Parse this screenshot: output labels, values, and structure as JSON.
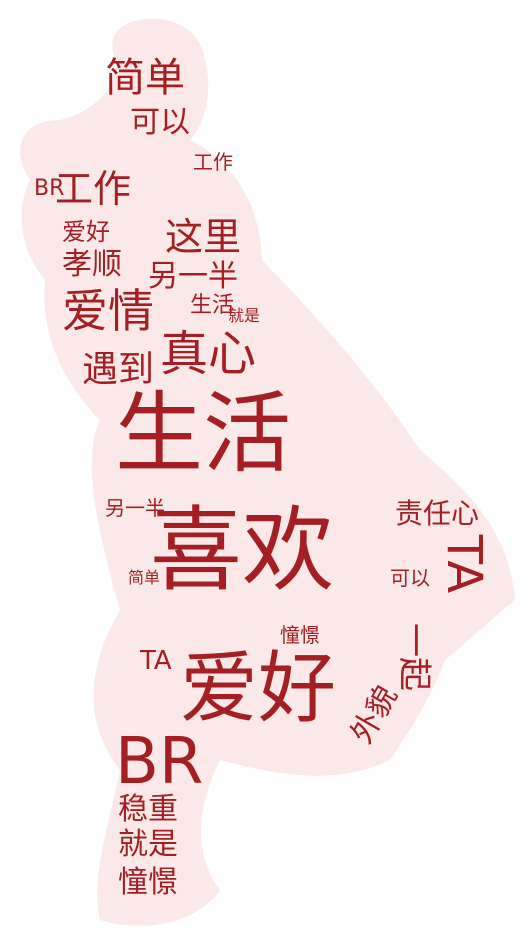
{
  "colors": {
    "text": "#a31f24",
    "silhouette": "#fbe9e9",
    "background": "#ffffff"
  },
  "words": [
    "喜欢",
    "生活",
    "爱好",
    "BR",
    "真心",
    "爱情",
    "简单",
    "工作",
    "TA",
    "这里",
    "遇到",
    "孝顺",
    "一起",
    "外貌",
    "责任心",
    "稳重",
    "就是",
    "憧憬",
    "可以",
    "另一半",
    "可以",
    "爱好",
    "就是",
    "生活",
    "工作",
    "简单",
    "另一半",
    "TA",
    "憧憬",
    "BR"
  ]
}
